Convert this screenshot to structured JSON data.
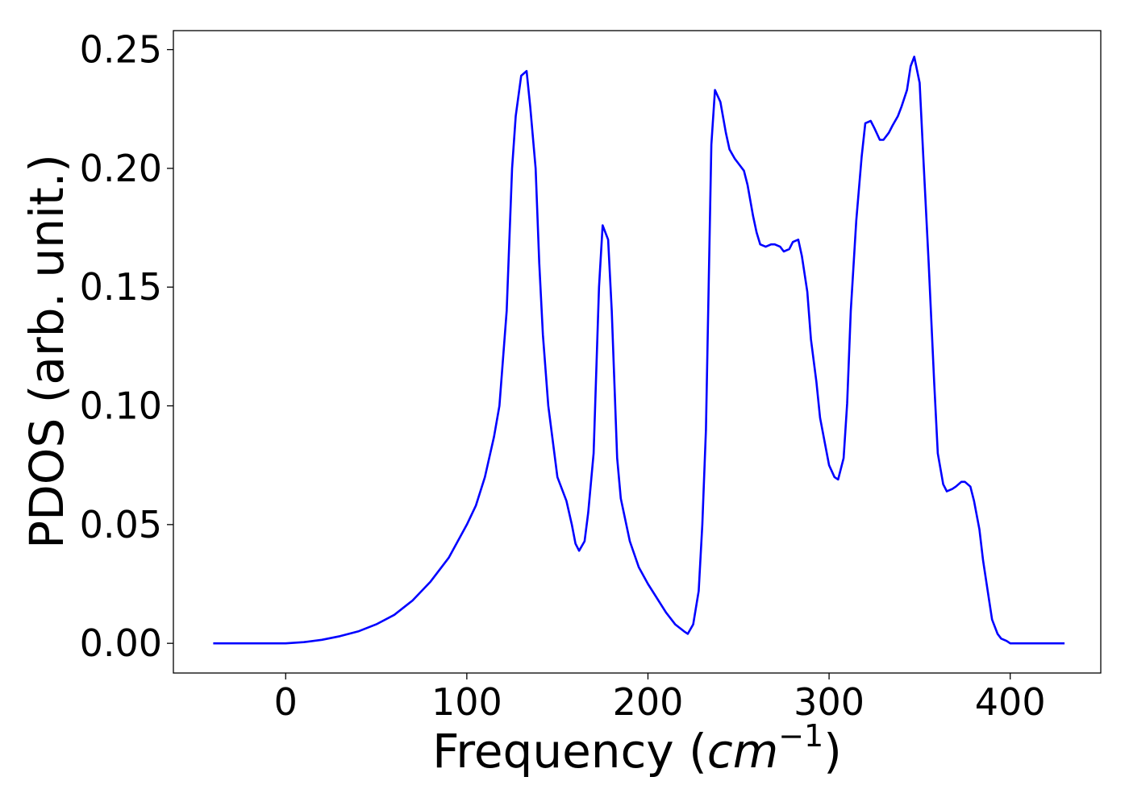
{
  "chart_data": {
    "type": "line",
    "title": "",
    "xlabel_main": "Frequency (",
    "xlabel_unit": "cm",
    "xlabel_exp": "−1",
    "xlabel_close": ")",
    "ylabel": "PDOS (arb. unit.)",
    "xlim": [
      -62,
      450
    ],
    "ylim": [
      -0.0125,
      0.258
    ],
    "xticks": [
      0,
      100,
      200,
      300,
      400
    ],
    "xtick_labels": [
      "0",
      "100",
      "200",
      "300",
      "400"
    ],
    "yticks": [
      0.0,
      0.05,
      0.1,
      0.15,
      0.2,
      0.25
    ],
    "ytick_labels": [
      "0.00",
      "0.05",
      "0.10",
      "0.15",
      "0.20",
      "0.25"
    ],
    "grid": false,
    "series": [
      {
        "color": "#0000ff",
        "x": [
          -40,
          0,
          10,
          20,
          30,
          40,
          50,
          60,
          70,
          80,
          90,
          100,
          105,
          110,
          115,
          118,
          122,
          125,
          127,
          130,
          133,
          135,
          138,
          140,
          142,
          145,
          150,
          155,
          158,
          160,
          162,
          165,
          167,
          170,
          173,
          175,
          178,
          180,
          183,
          185,
          190,
          195,
          200,
          210,
          215,
          220,
          222,
          225,
          228,
          230,
          232,
          235,
          237,
          240,
          243,
          245,
          248,
          250,
          253,
          255,
          258,
          260,
          262,
          265,
          268,
          270,
          273,
          275,
          278,
          280,
          283,
          285,
          288,
          290,
          293,
          295,
          298,
          300,
          303,
          305,
          308,
          310,
          312,
          315,
          318,
          320,
          323,
          325,
          328,
          330,
          333,
          335,
          338,
          340,
          343,
          345,
          347,
          350,
          352,
          355,
          358,
          360,
          363,
          365,
          368,
          370,
          373,
          375,
          378,
          380,
          383,
          385,
          388,
          390,
          393,
          395,
          398,
          400,
          410,
          430
        ],
        "y": [
          0.0,
          0.0,
          0.0005,
          0.0015,
          0.003,
          0.005,
          0.008,
          0.012,
          0.018,
          0.026,
          0.036,
          0.05,
          0.058,
          0.07,
          0.087,
          0.1,
          0.14,
          0.2,
          0.222,
          0.239,
          0.241,
          0.226,
          0.2,
          0.16,
          0.13,
          0.1,
          0.07,
          0.06,
          0.05,
          0.042,
          0.039,
          0.043,
          0.055,
          0.08,
          0.15,
          0.176,
          0.17,
          0.14,
          0.078,
          0.061,
          0.043,
          0.032,
          0.025,
          0.013,
          0.008,
          0.005,
          0.004,
          0.008,
          0.022,
          0.05,
          0.09,
          0.21,
          0.233,
          0.228,
          0.215,
          0.208,
          0.204,
          0.202,
          0.199,
          0.193,
          0.18,
          0.173,
          0.168,
          0.167,
          0.168,
          0.168,
          0.167,
          0.165,
          0.166,
          0.169,
          0.17,
          0.163,
          0.148,
          0.128,
          0.11,
          0.095,
          0.083,
          0.075,
          0.07,
          0.069,
          0.078,
          0.101,
          0.14,
          0.178,
          0.205,
          0.219,
          0.22,
          0.217,
          0.212,
          0.212,
          0.215,
          0.218,
          0.222,
          0.226,
          0.233,
          0.243,
          0.247,
          0.236,
          0.205,
          0.16,
          0.11,
          0.08,
          0.067,
          0.064,
          0.065,
          0.066,
          0.068,
          0.068,
          0.066,
          0.06,
          0.048,
          0.035,
          0.02,
          0.01,
          0.004,
          0.002,
          0.001,
          0.0,
          0.0,
          0.0
        ]
      }
    ]
  }
}
